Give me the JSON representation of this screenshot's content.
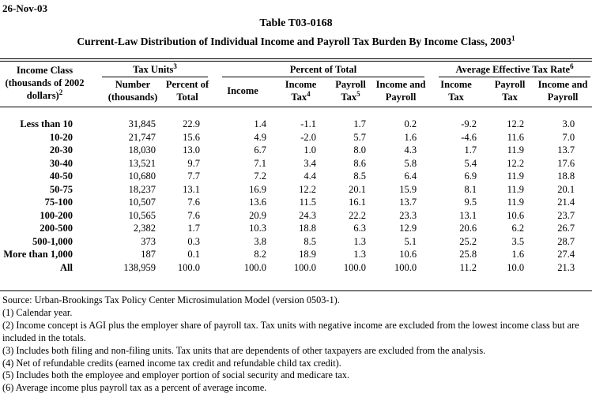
{
  "page": {
    "date": "26-Nov-03",
    "table_number": "Table T03-0168",
    "title": "Current-Law Distribution of Individual Income and Payroll Tax Burden By Income Class, 2003",
    "title_sup": "1"
  },
  "table": {
    "col1_header": {
      "line1": "Income Class",
      "line2": "(thousands of 2002",
      "line3": "dollars)",
      "sup": "2"
    },
    "groups": [
      {
        "label": "Tax Units",
        "sup": "3"
      },
      {
        "label": "Percent of Total",
        "sup": ""
      },
      {
        "label": "Average Effective Tax Rate",
        "sup": "6"
      }
    ],
    "subheaders": [
      {
        "line1": "Number",
        "line2": "(thousands)",
        "sup": ""
      },
      {
        "line1": "Percent of",
        "line2": "Total",
        "sup": ""
      },
      {
        "line1": "Income",
        "line2": "",
        "sup": ""
      },
      {
        "line1": "Income",
        "line2": "Tax",
        "sup": "4"
      },
      {
        "line1": "Payroll",
        "line2": "Tax",
        "sup": "5"
      },
      {
        "line1": "Income and",
        "line2": "Payroll",
        "sup": ""
      },
      {
        "line1": "Income",
        "line2": "Tax",
        "sup": ""
      },
      {
        "line1": "Payroll",
        "line2": "Tax",
        "sup": ""
      },
      {
        "line1": "Income and",
        "line2": "Payroll",
        "sup": ""
      }
    ],
    "rows": [
      [
        "Less than 10",
        "31,845",
        "22.9",
        "1.4",
        "-1.1",
        "1.7",
        "0.2",
        "-9.2",
        "12.2",
        "3.0"
      ],
      [
        "10-20",
        "21,747",
        "15.6",
        "4.9",
        "-2.0",
        "5.7",
        "1.6",
        "-4.6",
        "11.6",
        "7.0"
      ],
      [
        "20-30",
        "18,030",
        "13.0",
        "6.7",
        "1.0",
        "8.0",
        "4.3",
        "1.7",
        "11.9",
        "13.7"
      ],
      [
        "30-40",
        "13,521",
        "9.7",
        "7.1",
        "3.4",
        "8.6",
        "5.8",
        "5.4",
        "12.2",
        "17.6"
      ],
      [
        "40-50",
        "10,680",
        "7.7",
        "7.2",
        "4.4",
        "8.5",
        "6.4",
        "6.9",
        "11.9",
        "18.8"
      ],
      [
        "50-75",
        "18,237",
        "13.1",
        "16.9",
        "12.2",
        "20.1",
        "15.9",
        "8.1",
        "11.9",
        "20.1"
      ],
      [
        "75-100",
        "10,507",
        "7.6",
        "13.6",
        "11.5",
        "16.1",
        "13.7",
        "9.5",
        "11.9",
        "21.4"
      ],
      [
        "100-200",
        "10,565",
        "7.6",
        "20.9",
        "24.3",
        "22.2",
        "23.3",
        "13.1",
        "10.6",
        "23.7"
      ],
      [
        "200-500",
        "2,382",
        "1.7",
        "10.3",
        "18.8",
        "6.3",
        "12.9",
        "20.6",
        "6.2",
        "26.7"
      ],
      [
        "500-1,000",
        "373",
        "0.3",
        "3.8",
        "8.5",
        "1.3",
        "5.1",
        "25.2",
        "3.5",
        "28.7"
      ],
      [
        "More than 1,000",
        "187",
        "0.1",
        "8.2",
        "18.9",
        "1.3",
        "10.6",
        "25.8",
        "1.6",
        "27.4"
      ],
      [
        "All",
        "138,959",
        "100.0",
        "100.0",
        "100.0",
        "100.0",
        "100.0",
        "11.2",
        "10.0",
        "21.3"
      ]
    ]
  },
  "footnotes": [
    "Source: Urban-Brookings Tax Policy Center Microsimulation Model (version 0503-1).",
    "(1) Calendar year.",
    "(2) Income concept is AGI plus the employer share of payroll tax.  Tax units with negative income are excluded from the lowest income class but are included in the totals.",
    "(3) Includes both filing and non-filing units.  Tax units that are dependents of other taxpayers are excluded from the analysis.",
    "(4) Net of refundable credits (earned income tax credit and refundable child tax credit).",
    "(5) Includes both the employee and employer portion of social security and medicare tax.",
    "(6) Average income plus payroll tax as a percent of average income."
  ]
}
